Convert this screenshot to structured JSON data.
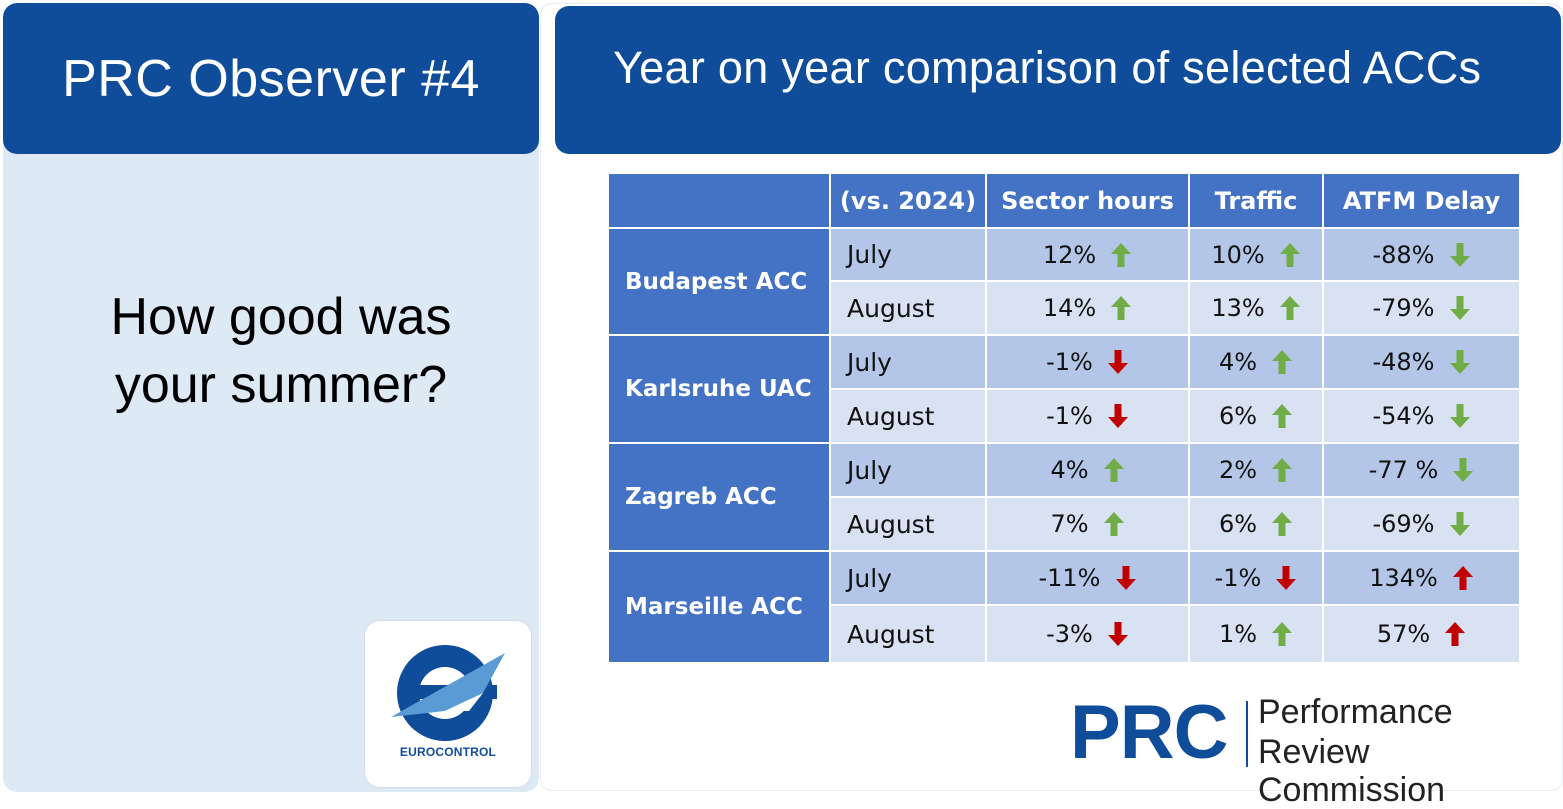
{
  "left": {
    "title": "PRC Observer #4",
    "question_line1": "How good was",
    "question_line2": "your summer?",
    "logo_text": "EUROCONTROL"
  },
  "right": {
    "title": "Year on year comparison of selected ACCs"
  },
  "table": {
    "headers": [
      "",
      "(vs. 2024)",
      "Sector hours",
      "Traffic",
      "ATFM Delay"
    ],
    "rows": [
      {
        "acc": "Budapest ACC",
        "month": "July",
        "sector_hours": "12%",
        "sector_dir": "up",
        "traffic": "10%",
        "traffic_dir": "up",
        "atfm": "-88%",
        "atfm_dir": "down"
      },
      {
        "acc": "Budapest ACC",
        "month": "August",
        "sector_hours": "14%",
        "sector_dir": "up",
        "traffic": "13%",
        "traffic_dir": "up",
        "atfm": "-79%",
        "atfm_dir": "down"
      },
      {
        "acc": "Karlsruhe UAC",
        "month": "July",
        "sector_hours": "-1%",
        "sector_dir": "down",
        "traffic": "4%",
        "traffic_dir": "up",
        "atfm": "-48%",
        "atfm_dir": "down"
      },
      {
        "acc": "Karlsruhe UAC",
        "month": "August",
        "sector_hours": "-1%",
        "sector_dir": "down",
        "traffic": "6%",
        "traffic_dir": "up",
        "atfm": "-54%",
        "atfm_dir": "down"
      },
      {
        "acc": "Zagreb ACC",
        "month": "July",
        "sector_hours": "4%",
        "sector_dir": "up",
        "traffic": "2%",
        "traffic_dir": "up",
        "atfm": "-77 %",
        "atfm_dir": "down"
      },
      {
        "acc": "Zagreb ACC",
        "month": "August",
        "sector_hours": "7%",
        "sector_dir": "up",
        "traffic": "6%",
        "traffic_dir": "up",
        "atfm": "-69%",
        "atfm_dir": "down"
      },
      {
        "acc": "Marseille ACC",
        "month": "July",
        "sector_hours": "-11%",
        "sector_dir": "down",
        "traffic": "-1%",
        "traffic_dir": "down",
        "atfm": "134%",
        "atfm_dir": "up"
      },
      {
        "acc": "Marseille ACC",
        "month": "August",
        "sector_hours": "-3%",
        "sector_dir": "down",
        "traffic": "1%",
        "traffic_dir": "up",
        "atfm": "57%",
        "atfm_dir": "up"
      }
    ]
  },
  "arrow_colors": {
    "up_green": "#70ad47",
    "down_green": "#70ad47",
    "down_red": "#c00000",
    "up_red": "#c00000"
  },
  "prc_logo": {
    "abbr": "PRC",
    "line1": "Performance",
    "line2": "Review Commission"
  },
  "colors": {
    "header_blue": "#0f4d9a",
    "table_blue": "#4472c4",
    "row_dark": "#b4c6e7",
    "row_light": "#d9e2f3",
    "left_bg": "#dde9f5"
  }
}
